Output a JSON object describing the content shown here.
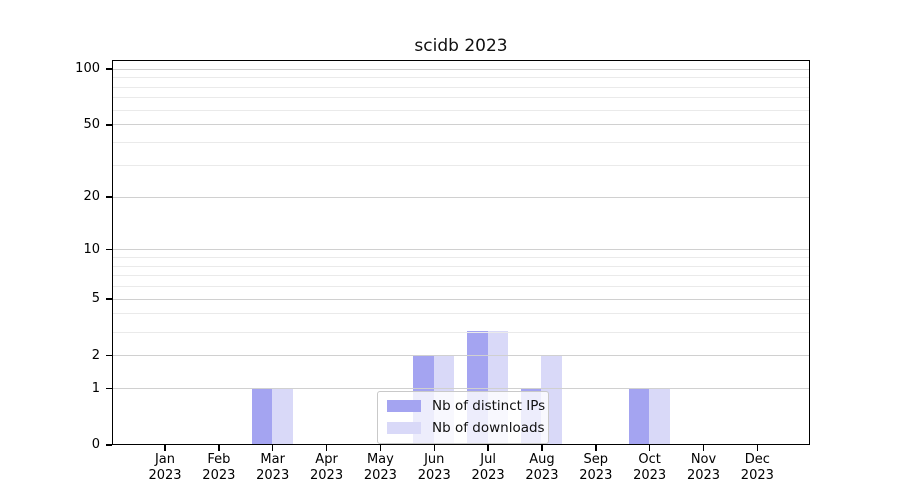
{
  "chart_data": {
    "type": "bar",
    "title": "scidb 2023",
    "categories": [
      "Jan 2023",
      "Feb 2023",
      "Mar 2023",
      "Apr 2023",
      "May 2023",
      "Jun 2023",
      "Jul 2023",
      "Aug 2023",
      "Sep 2023",
      "Oct 2023",
      "Nov 2023",
      "Dec 2023"
    ],
    "x_tick_line1": [
      "Jan",
      "Feb",
      "Mar",
      "Apr",
      "May",
      "Jun",
      "Jul",
      "Aug",
      "Sep",
      "Oct",
      "Nov",
      "Dec"
    ],
    "x_tick_line2": "2023",
    "series": [
      {
        "name": "Nb of distinct IPs",
        "color": "#a4a4f1",
        "values": [
          0,
          0,
          1,
          0,
          0,
          2,
          3,
          1,
          0,
          1,
          0,
          0
        ]
      },
      {
        "name": "Nb of downloads",
        "color": "#d9d9f8",
        "values": [
          0,
          0,
          1,
          0,
          0,
          2,
          3,
          2,
          0,
          1,
          0,
          0
        ]
      }
    ],
    "yscale": "log1p",
    "ylim": [
      0,
      112
    ],
    "y_major_ticks": [
      100,
      50,
      20,
      10,
      5,
      2,
      1,
      0
    ],
    "y_minor_gridlines": [
      3,
      4,
      6,
      7,
      8,
      9,
      30,
      40,
      60,
      70,
      80,
      90
    ],
    "grid": "both",
    "legend_position": "lower center"
  },
  "colors": {
    "grid_major": "#d0d0d0",
    "grid_minor": "#eaeaea",
    "spine": "#000000",
    "text": "#000000",
    "legend_border": "#c9c9c9"
  }
}
